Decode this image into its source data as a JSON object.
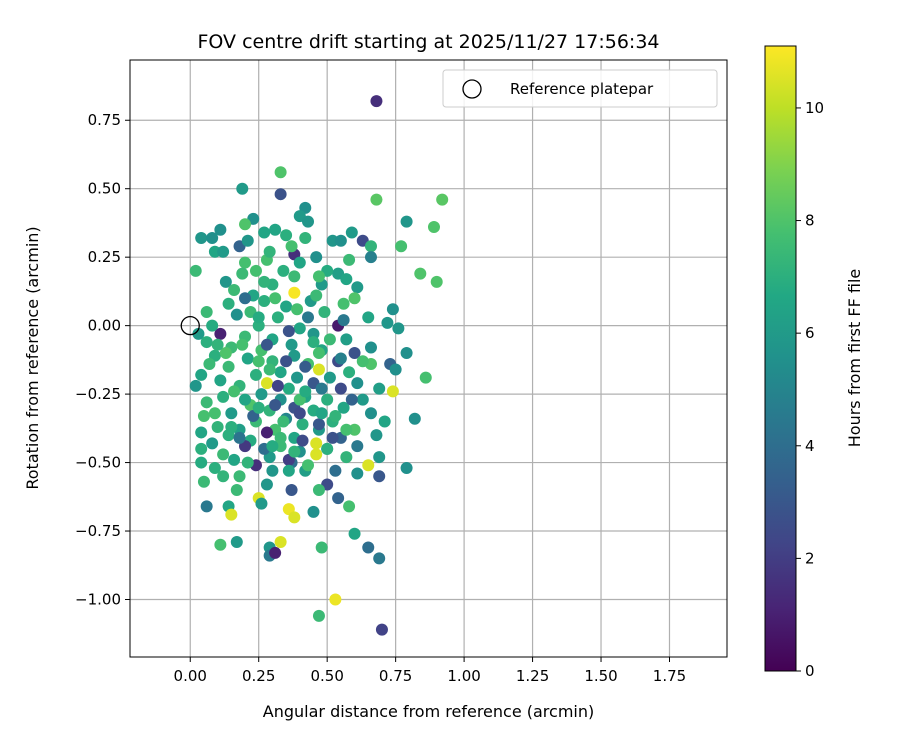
{
  "chart_data": {
    "type": "scatter",
    "title": "FOV centre drift starting at 2025/11/27 17:56:34",
    "xlabel": "Angular distance from reference (arcmin)",
    "ylabel": "Rotation from reference (arcmin)",
    "xlim": [
      -0.22,
      1.96
    ],
    "ylim": [
      -1.21,
      0.97
    ],
    "xticks": [
      0.0,
      0.25,
      0.5,
      0.75,
      1.0,
      1.25,
      1.5,
      1.75
    ],
    "xtick_labels": [
      "0.00",
      "0.25",
      "0.50",
      "0.75",
      "1.00",
      "1.25",
      "1.50",
      "1.75"
    ],
    "yticks": [
      0.75,
      0.5,
      0.25,
      0.0,
      -0.25,
      -0.5,
      -0.75,
      -1.0
    ],
    "ytick_labels": [
      "0.75",
      "0.50",
      "0.25",
      "0.00",
      "−0.25",
      "−0.50",
      "−0.75",
      "−1.00"
    ],
    "grid": true,
    "legend": {
      "placement": "top-right",
      "entries": [
        {
          "label": "Reference platepar",
          "marker": "open-circle"
        }
      ]
    },
    "reference_point": {
      "x": 0.0,
      "y": 0.0
    },
    "colorbar": {
      "label": "Hours from first FF file",
      "colormap": "viridis",
      "range": [
        0,
        11.1
      ],
      "ticks": [
        0,
        2,
        4,
        6,
        8,
        10
      ],
      "tick_labels": [
        "0",
        "2",
        "4",
        "6",
        "8",
        "10"
      ]
    },
    "points": [
      [
        0.68,
        0.82,
        1.5
      ],
      [
        0.7,
        -1.11,
        2.2
      ],
      [
        0.33,
        0.56,
        8.0
      ],
      [
        0.33,
        0.48,
        2.8
      ],
      [
        0.19,
        0.5,
        6.0
      ],
      [
        0.92,
        0.46,
        8.2
      ],
      [
        0.68,
        0.46,
        8.2
      ],
      [
        0.42,
        0.43,
        5.5
      ],
      [
        0.4,
        0.4,
        6.0
      ],
      [
        0.23,
        0.39,
        5.5
      ],
      [
        0.43,
        0.38,
        5.8
      ],
      [
        0.2,
        0.37,
        8.0
      ],
      [
        0.11,
        0.35,
        5.5
      ],
      [
        0.89,
        0.36,
        8.0
      ],
      [
        0.79,
        0.38,
        5.8
      ],
      [
        0.31,
        0.35,
        6.5
      ],
      [
        0.27,
        0.34,
        6.5
      ],
      [
        0.35,
        0.33,
        7.0
      ],
      [
        0.59,
        0.34,
        6.0
      ],
      [
        0.63,
        0.31,
        2.5
      ],
      [
        0.04,
        0.32,
        5.8
      ],
      [
        0.08,
        0.32,
        5.5
      ],
      [
        0.18,
        0.29,
        3.5
      ],
      [
        0.21,
        0.31,
        5.8
      ],
      [
        0.52,
        0.31,
        5.8
      ],
      [
        0.55,
        0.31,
        5.5
      ],
      [
        0.66,
        0.29,
        7.2
      ],
      [
        0.77,
        0.29,
        7.8
      ],
      [
        0.09,
        0.27,
        6.5
      ],
      [
        0.12,
        0.27,
        6.0
      ],
      [
        0.38,
        0.26,
        1.5
      ],
      [
        0.46,
        0.25,
        5.5
      ],
      [
        0.66,
        0.25,
        4.8
      ],
      [
        0.28,
        0.24,
        7.8
      ],
      [
        0.4,
        0.23,
        6.5
      ],
      [
        0.2,
        0.23,
        7.8
      ],
      [
        0.02,
        0.2,
        7.5
      ],
      [
        0.54,
        0.19,
        6.2
      ],
      [
        0.84,
        0.19,
        8.0
      ],
      [
        0.38,
        0.18,
        7.5
      ],
      [
        0.57,
        0.17,
        6.5
      ],
      [
        0.9,
        0.16,
        8.0
      ],
      [
        0.13,
        0.16,
        5.8
      ],
      [
        0.3,
        0.15,
        7.0
      ],
      [
        0.48,
        0.15,
        6.0
      ],
      [
        0.61,
        0.14,
        6.0
      ],
      [
        0.16,
        0.13,
        7.5
      ],
      [
        0.38,
        0.12,
        11.0
      ],
      [
        0.23,
        0.11,
        6.5
      ],
      [
        0.6,
        0.1,
        8.0
      ],
      [
        0.27,
        0.09,
        7.0
      ],
      [
        0.44,
        0.09,
        6.0
      ],
      [
        0.56,
        0.08,
        7.8
      ],
      [
        0.35,
        0.07,
        6.5
      ],
      [
        0.74,
        0.06,
        5.5
      ],
      [
        0.06,
        0.05,
        7.5
      ],
      [
        0.49,
        0.05,
        7.2
      ],
      [
        0.17,
        0.04,
        5.5
      ],
      [
        0.32,
        0.03,
        7.0
      ],
      [
        0.65,
        0.03,
        6.5
      ],
      [
        0.72,
        0.01,
        5.8
      ],
      [
        0.54,
        0.0,
        0.8
      ],
      [
        0.25,
        0.0,
        7.0
      ],
      [
        0.4,
        -0.01,
        6.5
      ],
      [
        0.76,
        -0.01,
        5.8
      ],
      [
        0.11,
        -0.03,
        1.0
      ],
      [
        0.03,
        -0.03,
        6.0
      ],
      [
        0.45,
        -0.03,
        5.8
      ],
      [
        0.2,
        -0.04,
        7.5
      ],
      [
        0.57,
        -0.05,
        6.2
      ],
      [
        0.3,
        -0.05,
        6.5
      ],
      [
        0.06,
        -0.06,
        7.0
      ],
      [
        0.37,
        -0.07,
        6.0
      ],
      [
        0.15,
        -0.08,
        7.5
      ],
      [
        0.66,
        -0.08,
        5.5
      ],
      [
        0.26,
        -0.09,
        7.8
      ],
      [
        0.48,
        -0.09,
        6.5
      ],
      [
        0.6,
        -0.1,
        2.8
      ],
      [
        0.79,
        -0.1,
        5.5
      ],
      [
        0.09,
        -0.11,
        7.0
      ],
      [
        0.38,
        -0.11,
        6.0
      ],
      [
        0.21,
        -0.12,
        6.5
      ],
      [
        0.54,
        -0.13,
        2.5
      ],
      [
        0.3,
        -0.13,
        7.2
      ],
      [
        0.43,
        -0.14,
        7.8
      ],
      [
        0.66,
        -0.14,
        8.0
      ],
      [
        0.73,
        -0.14,
        3.5
      ],
      [
        0.14,
        -0.15,
        7.5
      ],
      [
        0.47,
        -0.16,
        10.5
      ],
      [
        0.33,
        -0.17,
        6.5
      ],
      [
        0.58,
        -0.17,
        7.0
      ],
      [
        0.75,
        -0.16,
        5.5
      ],
      [
        0.04,
        -0.18,
        6.5
      ],
      [
        0.24,
        -0.18,
        7.0
      ],
      [
        0.39,
        -0.19,
        5.8
      ],
      [
        0.51,
        -0.19,
        6.0
      ],
      [
        0.86,
        -0.19,
        7.8
      ],
      [
        0.11,
        -0.2,
        6.5
      ],
      [
        0.28,
        -0.21,
        10.5
      ],
      [
        0.45,
        -0.21,
        3.0
      ],
      [
        0.61,
        -0.21,
        5.5
      ],
      [
        0.18,
        -0.22,
        7.2
      ],
      [
        0.36,
        -0.23,
        6.8
      ],
      [
        0.02,
        -0.22,
        5.8
      ],
      [
        0.55,
        -0.23,
        2.5
      ],
      [
        0.69,
        -0.23,
        6.2
      ],
      [
        0.26,
        -0.25,
        6.0
      ],
      [
        0.42,
        -0.26,
        6.5
      ],
      [
        0.74,
        -0.24,
        10.5
      ],
      [
        0.12,
        -0.26,
        7.0
      ],
      [
        0.33,
        -0.27,
        5.5
      ],
      [
        0.5,
        -0.27,
        7.0
      ],
      [
        0.63,
        -0.27,
        6.0
      ],
      [
        0.06,
        -0.28,
        7.5
      ],
      [
        0.22,
        -0.29,
        8.0
      ],
      [
        0.38,
        -0.3,
        2.8
      ],
      [
        0.56,
        -0.3,
        6.5
      ],
      [
        0.29,
        -0.31,
        7.2
      ],
      [
        0.45,
        -0.31,
        6.8
      ],
      [
        0.15,
        -0.32,
        6.0
      ],
      [
        0.66,
        -0.32,
        5.5
      ],
      [
        0.05,
        -0.33,
        7.8
      ],
      [
        0.35,
        -0.34,
        5.0
      ],
      [
        0.52,
        -0.35,
        7.0
      ],
      [
        0.24,
        -0.35,
        7.5
      ],
      [
        0.71,
        -0.35,
        6.5
      ],
      [
        0.82,
        -0.34,
        5.5
      ],
      [
        0.41,
        -0.36,
        7.0
      ],
      [
        0.1,
        -0.37,
        7.2
      ],
      [
        0.18,
        -0.38,
        6.2
      ],
      [
        0.31,
        -0.38,
        7.8
      ],
      [
        0.47,
        -0.38,
        6.0
      ],
      [
        0.6,
        -0.38,
        8.0
      ],
      [
        0.04,
        -0.39,
        6.5
      ],
      [
        0.28,
        -0.39,
        1.0
      ],
      [
        0.14,
        -0.4,
        7.0
      ],
      [
        0.38,
        -0.41,
        6.5
      ],
      [
        0.55,
        -0.41,
        3.5
      ],
      [
        0.68,
        -0.4,
        5.8
      ],
      [
        0.22,
        -0.42,
        6.8
      ],
      [
        0.46,
        -0.43,
        10.5
      ],
      [
        0.08,
        -0.43,
        6.0
      ],
      [
        0.33,
        -0.44,
        7.5
      ],
      [
        0.61,
        -0.44,
        4.5
      ],
      [
        0.2,
        -0.44,
        1.8
      ],
      [
        0.04,
        -0.45,
        7.0
      ],
      [
        0.5,
        -0.45,
        6.2
      ],
      [
        0.4,
        -0.46,
        5.5
      ],
      [
        0.12,
        -0.47,
        7.5
      ],
      [
        0.29,
        -0.48,
        6.0
      ],
      [
        0.57,
        -0.48,
        7.2
      ],
      [
        0.46,
        -0.47,
        10.5
      ],
      [
        0.69,
        -0.48,
        5.8
      ],
      [
        0.16,
        -0.49,
        6.5
      ],
      [
        0.37,
        -0.5,
        4.0
      ],
      [
        0.04,
        -0.5,
        6.8
      ],
      [
        0.24,
        -0.51,
        1.5
      ],
      [
        0.65,
        -0.51,
        10.5
      ],
      [
        0.09,
        -0.52,
        7.0
      ],
      [
        0.79,
        -0.52,
        5.5
      ],
      [
        0.42,
        -0.53,
        6.2
      ],
      [
        0.3,
        -0.53,
        5.8
      ],
      [
        0.53,
        -0.53,
        4.0
      ],
      [
        0.18,
        -0.55,
        7.5
      ],
      [
        0.61,
        -0.54,
        5.5
      ],
      [
        0.69,
        -0.55,
        3.0
      ],
      [
        0.05,
        -0.57,
        7.5
      ],
      [
        0.28,
        -0.58,
        5.8
      ],
      [
        0.5,
        -0.58,
        2.5
      ],
      [
        0.37,
        -0.6,
        3.0
      ],
      [
        0.17,
        -0.6,
        7.5
      ],
      [
        0.47,
        -0.6,
        7.5
      ],
      [
        0.25,
        -0.63,
        10.5
      ],
      [
        0.54,
        -0.63,
        3.5
      ],
      [
        0.06,
        -0.66,
        4.5
      ],
      [
        0.14,
        -0.66,
        6.5
      ],
      [
        0.26,
        -0.65,
        6.0
      ],
      [
        0.58,
        -0.66,
        7.8
      ],
      [
        0.36,
        -0.67,
        10.8
      ],
      [
        0.45,
        -0.68,
        5.5
      ],
      [
        0.15,
        -0.69,
        10.5
      ],
      [
        0.38,
        -0.7,
        10.5
      ],
      [
        0.6,
        -0.76,
        6.5
      ],
      [
        0.17,
        -0.79,
        6.0
      ],
      [
        0.33,
        -0.79,
        10.5
      ],
      [
        0.11,
        -0.8,
        7.8
      ],
      [
        0.29,
        -0.81,
        5.8
      ],
      [
        0.48,
        -0.81,
        7.5
      ],
      [
        0.65,
        -0.81,
        4.0
      ],
      [
        0.29,
        -0.84,
        4.5
      ],
      [
        0.69,
        -0.85,
        4.5
      ],
      [
        0.31,
        -0.83,
        1.0
      ],
      [
        0.47,
        -1.06,
        7.5
      ],
      [
        0.53,
        -1.0,
        10.8
      ],
      [
        0.36,
        -0.02,
        2.8
      ],
      [
        0.42,
        -0.15,
        3.2
      ],
      [
        0.31,
        -0.29,
        3.0
      ],
      [
        0.48,
        -0.23,
        4.5
      ],
      [
        0.36,
        -0.49,
        2.0
      ],
      [
        0.27,
        -0.45,
        4.0
      ],
      [
        0.52,
        -0.41,
        2.8
      ],
      [
        0.59,
        -0.27,
        3.5
      ],
      [
        0.43,
        0.03,
        4.5
      ],
      [
        0.2,
        0.1,
        4.0
      ],
      [
        0.28,
        -0.07,
        3.0
      ],
      [
        0.41,
        -0.42,
        2.5
      ],
      [
        0.35,
        -0.13,
        2.8
      ],
      [
        0.56,
        0.02,
        4.5
      ],
      [
        0.32,
        -0.22,
        2.2
      ],
      [
        0.47,
        -0.36,
        3.0
      ],
      [
        0.23,
        -0.33,
        3.5
      ],
      [
        0.55,
        -0.12,
        4.8
      ],
      [
        0.18,
        -0.41,
        4.2
      ],
      [
        0.4,
        -0.32,
        2.5
      ],
      [
        0.24,
        0.2,
        7.8
      ],
      [
        0.34,
        0.2,
        7.0
      ],
      [
        0.5,
        0.2,
        6.8
      ],
      [
        0.14,
        0.08,
        7.0
      ],
      [
        0.27,
        0.16,
        7.2
      ],
      [
        0.46,
        0.11,
        7.5
      ],
      [
        0.22,
        0.05,
        7.5
      ],
      [
        0.39,
        0.06,
        7.8
      ],
      [
        0.51,
        -0.05,
        7.5
      ],
      [
        0.13,
        -0.1,
        8.0
      ],
      [
        0.25,
        -0.13,
        7.8
      ],
      [
        0.4,
        -0.27,
        7.8
      ],
      [
        0.16,
        -0.24,
        7.8
      ],
      [
        0.53,
        -0.33,
        7.2
      ],
      [
        0.09,
        -0.32,
        7.8
      ],
      [
        0.33,
        -0.41,
        7.5
      ],
      [
        0.21,
        -0.5,
        7.2
      ],
      [
        0.43,
        -0.51,
        7.8
      ],
      [
        0.12,
        -0.55,
        7.2
      ],
      [
        0.57,
        -0.38,
        7.8
      ],
      [
        0.63,
        -0.13,
        7.8
      ],
      [
        0.31,
        0.1,
        7.8
      ],
      [
        0.19,
        0.19,
        7.5
      ],
      [
        0.42,
        0.32,
        7.2
      ],
      [
        0.29,
        0.27,
        7.2
      ],
      [
        0.37,
        0.29,
        7.8
      ],
      [
        0.58,
        0.24,
        7.5
      ],
      [
        0.47,
        0.18,
        7.8
      ],
      [
        0.07,
        -0.14,
        7.5
      ],
      [
        0.19,
        -0.07,
        7.8
      ],
      [
        0.47,
        -0.1,
        7.8
      ],
      [
        0.34,
        -0.35,
        7.5
      ],
      [
        0.15,
        -0.37,
        7.0
      ],
      [
        0.25,
        -0.3,
        7.0
      ],
      [
        0.5,
        -0.45,
        7.0
      ],
      [
        0.38,
        -0.46,
        7.2
      ],
      [
        0.29,
        -0.16,
        7.5
      ],
      [
        0.1,
        -0.07,
        7.2
      ],
      [
        0.45,
        -0.06,
        7.0
      ],
      [
        0.25,
        0.03,
        6.8
      ],
      [
        0.08,
        0.0,
        6.8
      ],
      [
        0.36,
        -0.53,
        6.5
      ],
      [
        0.48,
        -0.32,
        6.5
      ],
      [
        0.2,
        -0.27,
        6.5
      ],
      [
        0.3,
        -0.44,
        6.8
      ],
      [
        0.42,
        -0.24,
        6.8
      ]
    ]
  }
}
